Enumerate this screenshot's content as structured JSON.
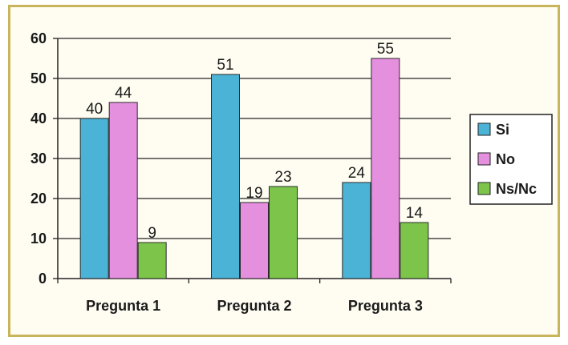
{
  "chart_data": {
    "type": "bar",
    "categories": [
      "Pregunta 1",
      "Pregunta 2",
      "Pregunta 3"
    ],
    "series": [
      {
        "name": "Si",
        "values": [
          40,
          51,
          24
        ],
        "color": "#4bb3d6"
      },
      {
        "name": "No",
        "values": [
          44,
          19,
          55
        ],
        "color": "#e58fdf"
      },
      {
        "name": "Ns/Nc",
        "values": [
          9,
          23,
          14
        ],
        "color": "#7cc44a"
      }
    ],
    "yticks": [
      0,
      10,
      20,
      30,
      40,
      50,
      60
    ],
    "ylim": [
      0,
      60
    ],
    "grid": true,
    "legend": "right"
  }
}
